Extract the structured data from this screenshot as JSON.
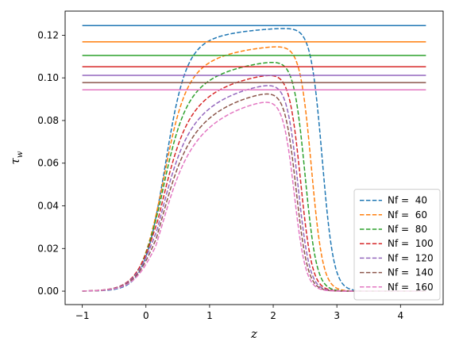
{
  "chart_data": {
    "type": "line",
    "title": "",
    "xlabel": "z",
    "ylabel": "τ_w",
    "ylabel_main": "τ",
    "ylabel_sub": "w",
    "xlim": [
      -1.27,
      4.67
    ],
    "ylim": [
      -0.0063,
      0.1313
    ],
    "xticks": [
      -1,
      0,
      1,
      2,
      3,
      4
    ],
    "yticks": [
      0.0,
      0.02,
      0.04,
      0.06,
      0.08,
      0.1,
      0.12
    ],
    "ytick_labels": [
      "0.00",
      "0.02",
      "0.04",
      "0.06",
      "0.08",
      "0.10",
      "0.12"
    ],
    "legend_position": "lower-right",
    "z_range": [
      -1.0,
      4.4
    ],
    "series": [
      {
        "name": "Nf =  40",
        "color": "#1f77b4",
        "plateau": 0.1245,
        "rise_mid": 0.28,
        "rise_width": 0.16,
        "fall_mid": 2.77,
        "fall_width": 0.09,
        "knee": 0.12
      },
      {
        "name": "Nf =  60",
        "color": "#ff7f0e",
        "plateau": 0.1169,
        "rise_mid": 0.24,
        "rise_width": 0.17,
        "fall_mid": 2.6,
        "fall_width": 0.09,
        "knee": 0.2
      },
      {
        "name": "Nf =  80",
        "color": "#2ca02c",
        "plateau": 0.1105,
        "rise_mid": 0.21,
        "rise_width": 0.17,
        "fall_mid": 2.5,
        "fall_width": 0.09,
        "knee": 0.28
      },
      {
        "name": "Nf =  100",
        "color": "#d62728",
        "plateau": 0.1052,
        "rise_mid": 0.19,
        "rise_width": 0.18,
        "fall_mid": 2.43,
        "fall_width": 0.09,
        "knee": 0.36
      },
      {
        "name": "Nf =  120",
        "color": "#9467bd",
        "plateau": 0.1012,
        "rise_mid": 0.17,
        "rise_width": 0.18,
        "fall_mid": 2.39,
        "fall_width": 0.09,
        "knee": 0.44
      },
      {
        "name": "Nf =  140",
        "color": "#8c564b",
        "plateau": 0.0978,
        "rise_mid": 0.16,
        "rise_width": 0.18,
        "fall_mid": 2.36,
        "fall_width": 0.09,
        "knee": 0.5
      },
      {
        "name": "Nf =  160",
        "color": "#e377c2",
        "plateau": 0.0944,
        "rise_mid": 0.15,
        "rise_width": 0.18,
        "fall_mid": 2.33,
        "fall_width": 0.09,
        "knee": 0.56
      }
    ]
  }
}
